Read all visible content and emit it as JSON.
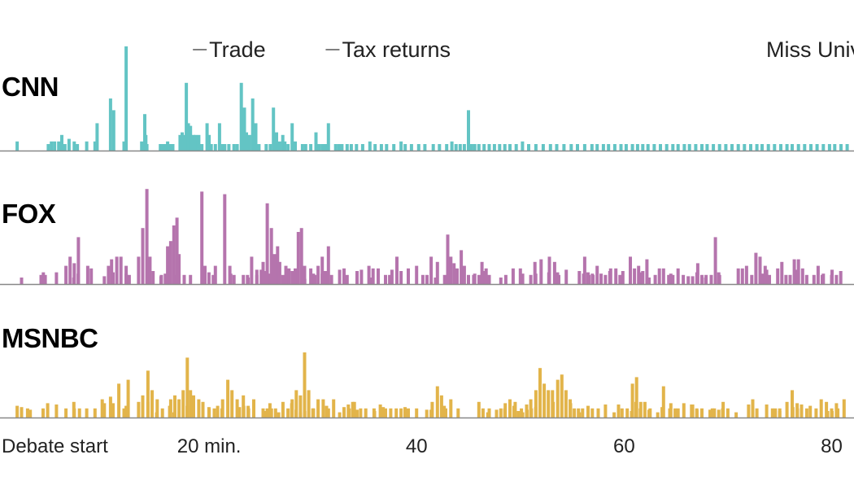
{
  "chart_data": {
    "type": "bar",
    "title": "",
    "xlabel": "",
    "ylabel": "",
    "x_unit": "minutes since debate start",
    "xlim": [
      0,
      82
    ],
    "x_ticks": [
      {
        "value": 0,
        "label": "Debate start"
      },
      {
        "value": 20,
        "label": "20 min."
      },
      {
        "value": 40,
        "label": "40"
      },
      {
        "value": 60,
        "label": "60"
      },
      {
        "value": 80,
        "label": "80"
      }
    ],
    "series": [
      {
        "name": "CNN",
        "color": "#63c4c4",
        "peak_label": "Trade",
        "points": [
          [
            1.5,
            0.07
          ],
          [
            4.5,
            0.05
          ],
          [
            4.8,
            0.07
          ],
          [
            5.1,
            0.07
          ],
          [
            5.5,
            0.07
          ],
          [
            5.8,
            0.12
          ],
          [
            6.1,
            0.05
          ],
          [
            6.5,
            0.09
          ],
          [
            7.0,
            0.07
          ],
          [
            7.3,
            0.05
          ],
          [
            8.2,
            0.07
          ],
          [
            9.0,
            0.07
          ],
          [
            9.2,
            0.21
          ],
          [
            10.5,
            0.4
          ],
          [
            10.8,
            0.31
          ],
          [
            11.8,
            0.07
          ],
          [
            12.0,
            0.8
          ],
          [
            13.5,
            0.07
          ],
          [
            13.8,
            0.28
          ],
          [
            13.9,
            0.12
          ],
          [
            14.0,
            0.05
          ],
          [
            15.3,
            0.05
          ],
          [
            15.6,
            0.05
          ],
          [
            15.9,
            0.05
          ],
          [
            16.0,
            0.07
          ],
          [
            16.3,
            0.05
          ],
          [
            16.5,
            0.05
          ],
          [
            17.2,
            0.12
          ],
          [
            17.4,
            0.14
          ],
          [
            17.6,
            0.12
          ],
          [
            17.8,
            0.52
          ],
          [
            18.0,
            0.21
          ],
          [
            18.2,
            0.19
          ],
          [
            18.5,
            0.12
          ],
          [
            18.7,
            0.12
          ],
          [
            18.9,
            0.07
          ],
          [
            19.0,
            0.12
          ],
          [
            19.2,
            0.05
          ],
          [
            19.3,
            0.05
          ],
          [
            19.8,
            0.21
          ],
          [
            20.0,
            0.12
          ],
          [
            20.1,
            0.05
          ],
          [
            20.2,
            0.05
          ],
          [
            20.6,
            0.05
          ],
          [
            21.0,
            0.21
          ],
          [
            21.3,
            0.05
          ],
          [
            21.5,
            0.05
          ],
          [
            21.9,
            0.05
          ],
          [
            22.4,
            0.05
          ],
          [
            22.7,
            0.05
          ],
          [
            23.1,
            0.52
          ],
          [
            23.4,
            0.33
          ],
          [
            23.6,
            0.14
          ],
          [
            23.9,
            0.12
          ],
          [
            24.2,
            0.4
          ],
          [
            24.5,
            0.21
          ],
          [
            24.8,
            0.05
          ],
          [
            25.5,
            0.05
          ],
          [
            25.9,
            0.05
          ],
          [
            26.2,
            0.33
          ],
          [
            26.5,
            0.14
          ],
          [
            26.8,
            0.07
          ],
          [
            27.1,
            0.12
          ],
          [
            27.3,
            0.07
          ],
          [
            27.6,
            0.05
          ],
          [
            28.0,
            0.21
          ],
          [
            28.3,
            0.07
          ],
          [
            29.0,
            0.05
          ],
          [
            29.3,
            0.05
          ],
          [
            29.8,
            0.05
          ],
          [
            30.3,
            0.14
          ],
          [
            30.6,
            0.05
          ],
          [
            30.9,
            0.05
          ],
          [
            31.2,
            0.05
          ],
          [
            31.5,
            0.21
          ],
          [
            32.2,
            0.05
          ],
          [
            32.5,
            0.05
          ],
          [
            32.8,
            0.05
          ],
          [
            33.3,
            0.05
          ],
          [
            33.7,
            0.05
          ],
          [
            34.2,
            0.05
          ],
          [
            34.8,
            0.05
          ],
          [
            35.5,
            0.07
          ],
          [
            36.0,
            0.05
          ],
          [
            36.6,
            0.05
          ],
          [
            37.1,
            0.05
          ],
          [
            37.8,
            0.05
          ],
          [
            38.5,
            0.07
          ],
          [
            38.9,
            0.05
          ],
          [
            39.5,
            0.05
          ],
          [
            40.2,
            0.05
          ],
          [
            40.8,
            0.05
          ],
          [
            41.6,
            0.05
          ],
          [
            42.2,
            0.05
          ],
          [
            42.9,
            0.05
          ],
          [
            43.4,
            0.07
          ],
          [
            43.8,
            0.05
          ],
          [
            44.2,
            0.05
          ],
          [
            44.6,
            0.05
          ],
          [
            45.0,
            0.31
          ],
          [
            45.3,
            0.05
          ],
          [
            45.6,
            0.05
          ],
          [
            46.0,
            0.05
          ],
          [
            46.5,
            0.05
          ],
          [
            47.0,
            0.05
          ],
          [
            47.5,
            0.05
          ],
          [
            48.0,
            0.05
          ],
          [
            48.5,
            0.05
          ],
          [
            49.0,
            0.05
          ],
          [
            49.6,
            0.05
          ],
          [
            50.2,
            0.07
          ],
          [
            50.8,
            0.05
          ],
          [
            51.5,
            0.05
          ],
          [
            52.2,
            0.05
          ],
          [
            52.9,
            0.05
          ],
          [
            53.5,
            0.05
          ],
          [
            54.2,
            0.05
          ],
          [
            54.9,
            0.05
          ],
          [
            55.5,
            0.05
          ],
          [
            56.2,
            0.05
          ],
          [
            56.9,
            0.05
          ],
          [
            57.4,
            0.05
          ],
          [
            58.0,
            0.05
          ],
          [
            58.5,
            0.05
          ],
          [
            59.1,
            0.05
          ],
          [
            59.7,
            0.05
          ],
          [
            60.2,
            0.05
          ],
          [
            60.8,
            0.05
          ],
          [
            61.3,
            0.05
          ],
          [
            61.8,
            0.05
          ],
          [
            62.3,
            0.05
          ],
          [
            62.9,
            0.05
          ],
          [
            63.5,
            0.05
          ],
          [
            64.1,
            0.05
          ],
          [
            64.7,
            0.05
          ],
          [
            65.2,
            0.05
          ],
          [
            65.8,
            0.05
          ],
          [
            66.3,
            0.05
          ],
          [
            66.9,
            0.05
          ],
          [
            67.5,
            0.05
          ],
          [
            68.0,
            0.05
          ],
          [
            68.6,
            0.05
          ],
          [
            69.2,
            0.05
          ],
          [
            69.8,
            0.05
          ],
          [
            70.4,
            0.05
          ],
          [
            71.0,
            0.05
          ],
          [
            71.6,
            0.05
          ],
          [
            72.2,
            0.05
          ],
          [
            72.8,
            0.05
          ],
          [
            73.3,
            0.05
          ],
          [
            73.9,
            0.05
          ],
          [
            74.5,
            0.05
          ],
          [
            75.1,
            0.05
          ],
          [
            75.7,
            0.05
          ],
          [
            76.2,
            0.05
          ],
          [
            76.8,
            0.05
          ],
          [
            77.4,
            0.05
          ],
          [
            78.0,
            0.05
          ],
          [
            78.6,
            0.05
          ],
          [
            79.2,
            0.05
          ],
          [
            79.8,
            0.05
          ],
          [
            80.3,
            0.05
          ],
          [
            80.9,
            0.05
          ],
          [
            81.5,
            0.05
          ]
        ]
      },
      {
        "name": "FOX",
        "color": "#b574ad",
        "points": []
      },
      {
        "name": "MSNBC",
        "color": "#e2b44a",
        "points": []
      }
    ],
    "annotations": [
      {
        "series": "CNN",
        "x": 18.2,
        "text": "Trade"
      },
      {
        "series": "CNN",
        "x": 31.0,
        "text": "Tax returns"
      },
      {
        "series": "CNN",
        "x": 81.0,
        "text": "Miss Universe"
      }
    ]
  }
}
